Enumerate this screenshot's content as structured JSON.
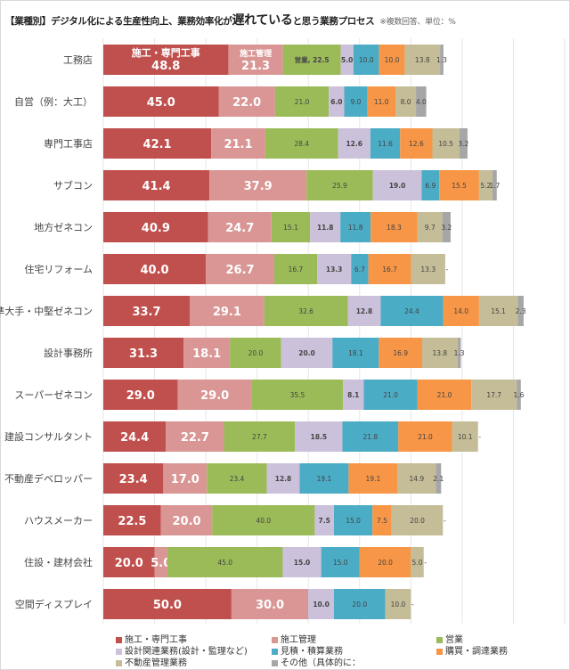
{
  "chart_data": {
    "type": "bar",
    "orientation": "horizontal",
    "stacked": true,
    "title": {
      "prefix": "【業種別】デジタル化による生産性向上、業務効率化が",
      "emphasis": "遅れている",
      "suffix": "と思う業務プロセス",
      "note": "※複数回答、単位：%"
    },
    "xlim": [
      0,
      180
    ],
    "grid": true,
    "legend_position": "bottom",
    "categories": [
      "工務店",
      "自営（例：大工）",
      "専門工事店",
      "サブコン",
      "地方ゼネコン",
      "住宅リフォーム",
      "準大手・中堅ゼネコン",
      "設計事務所",
      "スーパーゼネコン",
      "建設コンサルタント",
      "不動産デベロッパー",
      "ハウスメーカー",
      "住設・建材会社",
      "空間ディスプレイ"
    ],
    "series": [
      {
        "name": "施工・専門工事",
        "color": "#c0504d",
        "values": [
          48.8,
          45.0,
          42.1,
          41.4,
          40.9,
          40.0,
          33.7,
          31.3,
          29.0,
          24.4,
          23.4,
          22.5,
          20.0,
          50.0
        ]
      },
      {
        "name": "施工管理",
        "color": "#d99694",
        "values": [
          21.3,
          22.0,
          21.1,
          37.9,
          24.7,
          26.7,
          29.1,
          18.1,
          29.0,
          22.7,
          17.0,
          20.0,
          5.0,
          30.0
        ]
      },
      {
        "name": "営業",
        "color": "#9bbb59",
        "values": [
          22.5,
          21.0,
          28.4,
          25.9,
          15.1,
          16.7,
          32.6,
          20.0,
          35.5,
          27.7,
          23.4,
          40.0,
          45.0,
          0
        ]
      },
      {
        "name": "設計関連業務(設計・監理など)",
        "color": "#ccc1da",
        "values": [
          5.0,
          6.0,
          12.6,
          19.0,
          11.8,
          13.3,
          12.8,
          20.0,
          8.1,
          18.5,
          12.8,
          7.5,
          15.0,
          10.0
        ]
      },
      {
        "name": "見積・積算業務",
        "color": "#4bacc6",
        "values": [
          10.0,
          9.0,
          11.6,
          6.9,
          11.8,
          6.7,
          24.4,
          18.1,
          21.0,
          21.8,
          19.1,
          15.0,
          15.0,
          20.0
        ]
      },
      {
        "name": "購買・調達業務",
        "color": "#f79646",
        "values": [
          10.0,
          11.0,
          12.6,
          15.5,
          18.3,
          16.7,
          14.0,
          16.9,
          21.0,
          21.0,
          19.1,
          7.5,
          20.0,
          0
        ]
      },
      {
        "name": "不動産管理業務",
        "color": "#c4bd97",
        "values": [
          13.8,
          8.0,
          10.5,
          5.2,
          9.7,
          13.3,
          15.1,
          13.8,
          17.7,
          10.1,
          14.9,
          20.0,
          5.0,
          10.0
        ]
      },
      {
        "name": "その他（具体的に：",
        "color": "#a6a6a6",
        "values": [
          1.3,
          4.0,
          3.2,
          1.7,
          3.2,
          0,
          2.3,
          1.3,
          1.6,
          0,
          2.1,
          0,
          0,
          0
        ]
      }
    ],
    "annotations": {
      "first_row_series_labels": [
        "施工・専門工事",
        "施工管理"
      ],
      "first_row_green_label": "営業, 22.5",
      "zero_label": "-"
    }
  }
}
